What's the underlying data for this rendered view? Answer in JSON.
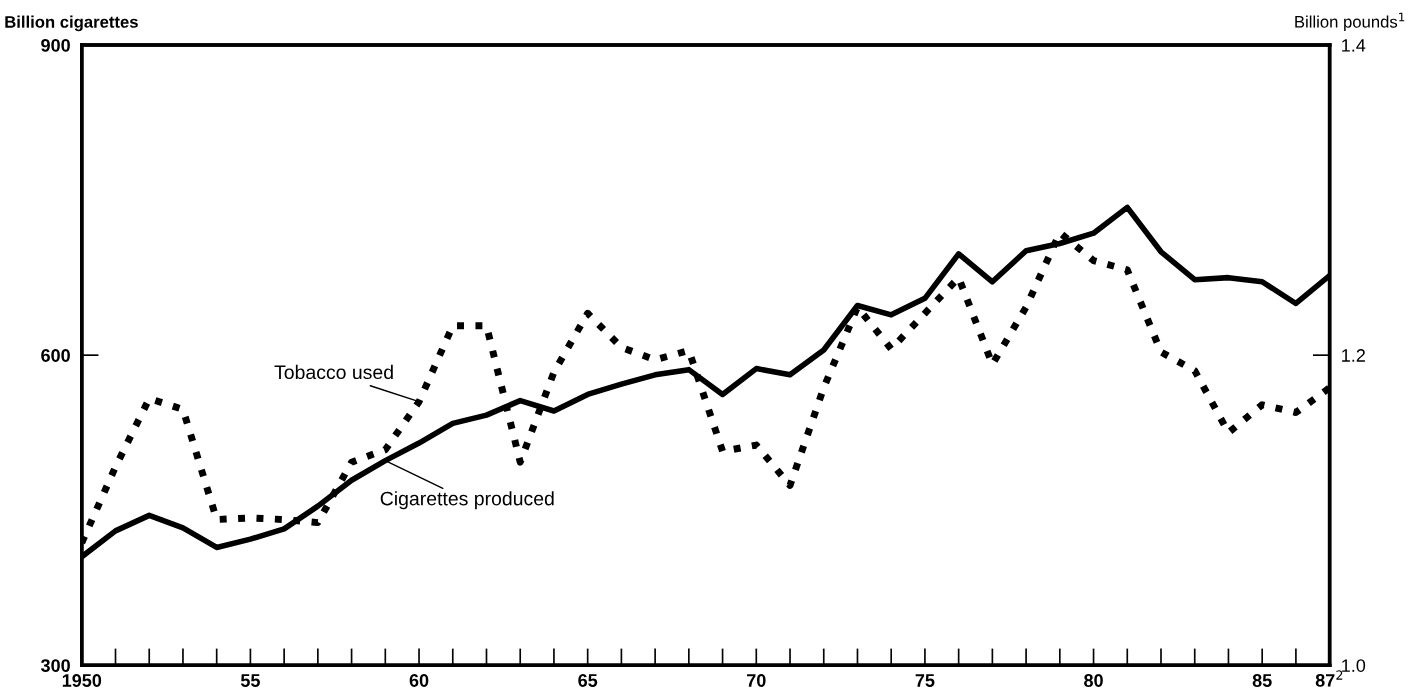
{
  "chart_data": {
    "type": "line",
    "ylabel": "Billion cigarettes",
    "y2label": "Billion pounds$^{1}$",
    "x": [
      1950,
      1951,
      1952,
      1953,
      1954,
      1955,
      1956,
      1957,
      1958,
      1959,
      1960,
      1961,
      1962,
      1963,
      1964,
      1965,
      1966,
      1967,
      1968,
      1969,
      1970,
      1971,
      1972,
      1973,
      1974,
      1975,
      1976,
      1977,
      1978,
      1979,
      1980,
      1981,
      1982,
      1983,
      1984,
      1985,
      1986,
      1987
    ],
    "series": [
      {
        "name": "Cigarettes produced",
        "color": "#000000",
        "line_style": "solid",
        "values": [
          405,
          430,
          445,
          433,
          414,
          422,
          432,
          454,
          479,
          498,
          515,
          534,
          542,
          556,
          546,
          562,
          572,
          581,
          586,
          562,
          587,
          581,
          605,
          648,
          639,
          655,
          698,
          671,
          701,
          708,
          718,
          743,
          700,
          673,
          675,
          671,
          650,
          677
        ]
      },
      {
        "name": "Tobacco used",
        "color": "#000000",
        "line_style": "dotted",
        "axis": "y2",
        "values": [
          1.079,
          1.128,
          1.172,
          1.165,
          1.094,
          1.095,
          1.094,
          1.092,
          1.131,
          1.139,
          1.17,
          1.219,
          1.219,
          1.131,
          1.189,
          1.227,
          1.205,
          1.197,
          1.203,
          1.138,
          1.142,
          1.116,
          1.179,
          1.231,
          1.204,
          1.227,
          1.25,
          1.194,
          1.231,
          1.279,
          1.261,
          1.255,
          1.202,
          1.19,
          1.15,
          1.168,
          1.163,
          1.179
        ]
      }
    ],
    "xlim": [
      1950,
      1987
    ],
    "xticks": [
      {
        "value": 1950,
        "label": "1950"
      },
      {
        "value": 1955,
        "label": "55"
      },
      {
        "value": 1960,
        "label": "60"
      },
      {
        "value": 1965,
        "label": "65"
      },
      {
        "value": 1970,
        "label": "70"
      },
      {
        "value": 1975,
        "label": "75"
      },
      {
        "value": 1980,
        "label": "80"
      },
      {
        "value": 1985,
        "label": "85"
      },
      {
        "value": 1987,
        "label": "87$^{2}$"
      }
    ],
    "ylim": [
      300,
      900
    ],
    "yticks": [
      300,
      600,
      900
    ],
    "y2lim": [
      1.0,
      1.4
    ],
    "y2ticks": [
      {
        "value": 1.0,
        "label": "1.0"
      },
      {
        "value": 1.2,
        "label": "1.2"
      },
      {
        "value": 1.4,
        "label": "1.4"
      }
    ],
    "grid": false
  }
}
